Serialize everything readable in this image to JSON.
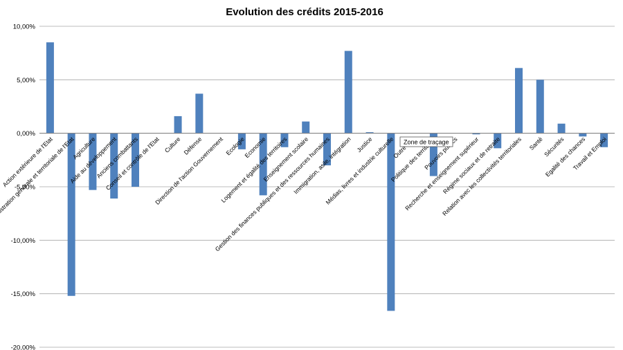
{
  "chart_data": {
    "type": "bar",
    "title": "Evolution des crédits 2015-2016",
    "xlabel": "",
    "ylabel": "",
    "ylim": [
      -20,
      10
    ],
    "yticks": [
      10,
      5,
      0,
      -5,
      -10,
      -15,
      -20
    ],
    "ytick_labels": [
      "10,00%",
      "5,00%",
      "0,00%",
      "-5,00%",
      "-10,00%",
      "-15,00%",
      "-20,00%"
    ],
    "grid": true,
    "legend": "none",
    "bar_color": "#4f81bd",
    "gridline_color": "#a6a6a6",
    "categories": [
      "Action extérieure de l'Etat",
      "Administration générale et territoriale de l'Etat",
      "Agriculture",
      "Aide au développement",
      "Anciens combattants",
      "Conseil et contrôle de l'Etat",
      "Culture",
      "Défense",
      "Direction de l'action Gouvernement",
      "Ecologie",
      "Economie",
      "Logement et égalité des territoires",
      "Enseignement scolaire",
      "Gestion des finances publiques et des ressources humaines",
      "Immigration, asile, intégration",
      "Justice",
      "Médias, livres et industrie culturelle",
      "Outre-mer",
      "Politique des territoires",
      "Pouvoirs publics",
      "Recherche et enseignement supérieur",
      "Régime sociaux et de retraite",
      "Relation avec les collectivités territoriales",
      "Santé",
      "Sécurités",
      "Egalité des chances",
      "Travail et Emploi"
    ],
    "values": [
      8.5,
      -15.2,
      -5.3,
      -6.1,
      -5.0,
      0.0,
      1.6,
      3.7,
      0.0,
      -1.5,
      -5.8,
      -1.3,
      1.1,
      -3.0,
      7.7,
      0.1,
      -16.6,
      0.0,
      -4.0,
      0.0,
      -0.1,
      -1.4,
      6.1,
      5.0,
      0.9,
      -0.3,
      -1.3
    ]
  },
  "tooltip": {
    "text": "Zone de traçage"
  }
}
